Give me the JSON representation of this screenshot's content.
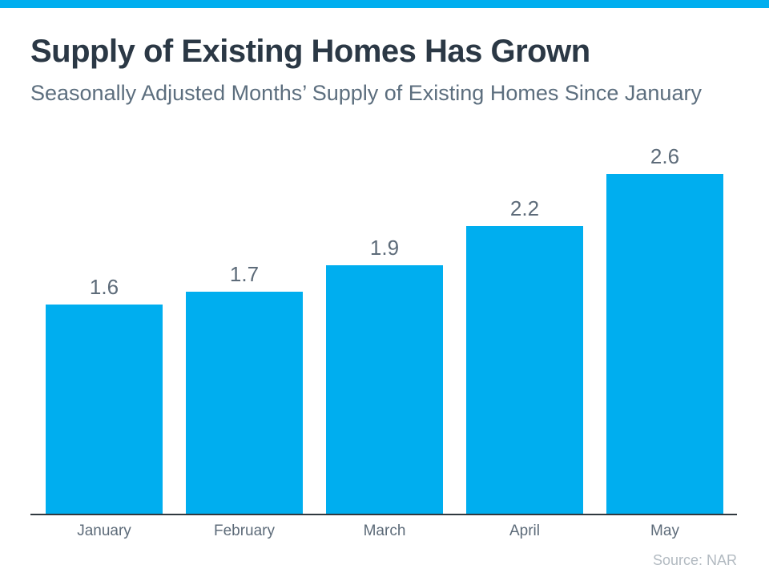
{
  "page": {
    "title": "Supply of Existing Homes Has Grown",
    "subtitle": "Seasonally Adjusted Months’ Supply of Existing Homes Since January",
    "source": "Source: NAR"
  },
  "colors": {
    "accent": "#00AEEF",
    "title_text": "#2B3845",
    "subtitle_text": "#5C6E7E",
    "label_text": "#5D6B79",
    "axis_line": "#30393F",
    "source_text": "#B2BAC1"
  },
  "chart_data": {
    "type": "bar",
    "title": "Supply of Existing Homes Has Grown",
    "subtitle": "Seasonally Adjusted Months’ Supply of Existing Homes Since January",
    "categories": [
      "January",
      "February",
      "March",
      "April",
      "May"
    ],
    "values": [
      1.6,
      1.7,
      1.9,
      2.2,
      2.6
    ],
    "data_labels": [
      "1.6",
      "1.7",
      "1.9",
      "2.2",
      "2.6"
    ],
    "xlabel": "",
    "ylabel": "",
    "ylim": [
      0,
      2.8
    ],
    "grid": false,
    "legend": false,
    "bar_color": "#00AEEF",
    "source": "Source: NAR"
  }
}
